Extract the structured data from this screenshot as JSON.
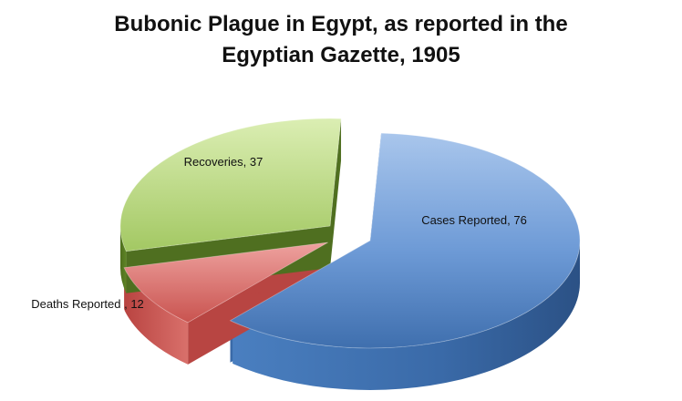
{
  "chart_data": {
    "type": "pie",
    "title_lines": [
      "Bubonic Plague in Egypt, as reported in the",
      "Egyptian Gazette, 1905"
    ],
    "slices": [
      {
        "name": "Cases Reported",
        "value": 76,
        "label": "Cases Reported, 76",
        "color": "#4f81bd"
      },
      {
        "name": "Deaths Reported",
        "value": 12,
        "label": "Deaths Reported , 12",
        "color": "#c0504d"
      },
      {
        "name": "Recoveries",
        "value": 37,
        "label": "Recoveries, 37",
        "color": "#9bbb59"
      }
    ],
    "exploded": true,
    "style": "3d"
  }
}
